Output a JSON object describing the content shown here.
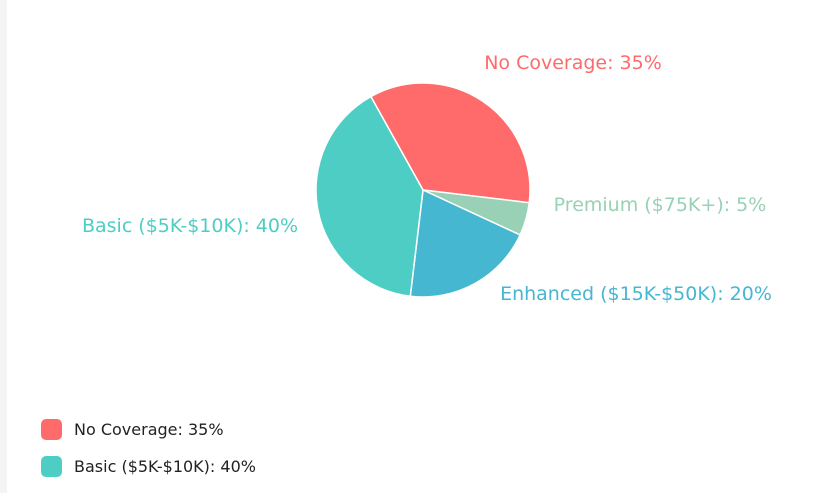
{
  "chart_data": {
    "type": "pie",
    "slices": [
      {
        "label": "No Coverage: 35%",
        "value": 35,
        "color": "#ff6b6b"
      },
      {
        "label": "Premium ($75K+): 5%",
        "value": 5,
        "color": "#98d1b5"
      },
      {
        "label": "Enhanced ($15K-$50K): 20%",
        "value": 20,
        "color": "#45b7d1"
      },
      {
        "label": "Basic ($5K-$10K): 40%",
        "value": 40,
        "color": "#4ecdc4"
      }
    ],
    "legend": {
      "placement": "bottom-left",
      "items": [
        {
          "label": "No Coverage: 35%",
          "color": "#ff6b6b"
        },
        {
          "label": "Basic ($5K-$10K): 40%",
          "color": "#4ecdc4"
        }
      ]
    }
  }
}
